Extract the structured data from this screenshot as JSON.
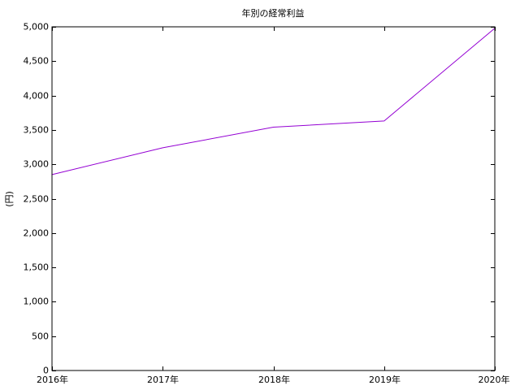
{
  "chart_data": {
    "type": "line",
    "title": "年別の経常利益",
    "xlabel": "",
    "ylabel": "(円)",
    "categories": [
      "2016年",
      "2017年",
      "2018年",
      "2019年",
      "2020年"
    ],
    "series": [
      {
        "name": "経常利益",
        "values": [
          2850,
          3240,
          3540,
          3630,
          4980
        ],
        "color": "#9400d3"
      }
    ],
    "ylim": [
      0,
      5000
    ],
    "yticks": [
      0,
      500,
      1000,
      1500,
      2000,
      2500,
      3000,
      3500,
      4000,
      4500,
      5000
    ],
    "ytick_labels": [
      "0",
      "500",
      "1,000",
      "1,500",
      "2,000",
      "2,500",
      "3,000",
      "3,500",
      "4,000",
      "4,500",
      "5,000"
    ],
    "grid": false,
    "legend": "none"
  }
}
